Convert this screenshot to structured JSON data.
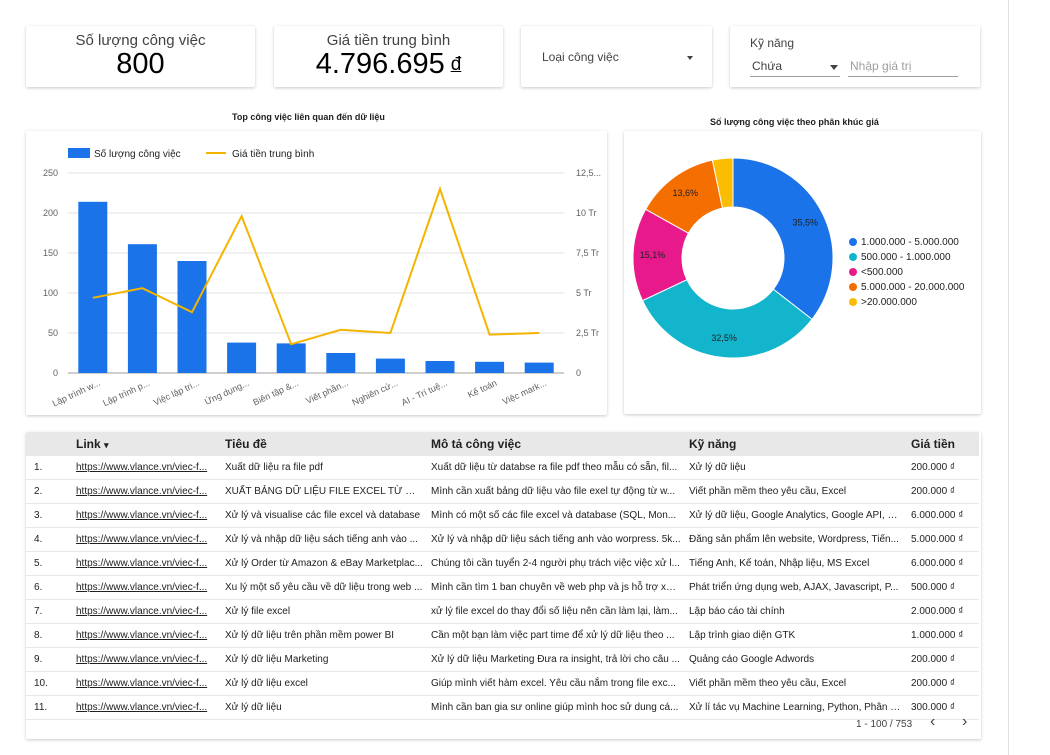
{
  "kpis": [
    {
      "label": "Số lượng công việc",
      "value": "800",
      "unit": ""
    },
    {
      "label": "Giá tiền trung bình",
      "value": "4.796.695",
      "unit": "đ"
    }
  ],
  "filters": {
    "job_type": {
      "label": "Loại công việc"
    },
    "skills": {
      "label": "Kỹ năng",
      "operator": "Chứa",
      "placeholder": "Nhập giá trị"
    }
  },
  "bar_chart_title": "Top công việc liên quan đến dữ liệu",
  "pie_chart_title": "Số lượng công việc theo phân khúc giá",
  "colors": {
    "bar": "#1a73e8",
    "line": "#f4b400",
    "pie": [
      "#1a73e8",
      "#12b5cb",
      "#e8198b",
      "#f46e00",
      "#fbbc04"
    ]
  },
  "chart_data": [
    {
      "type": "bar",
      "title": "Top công việc liên quan đến dữ liệu",
      "categories": [
        "Lập trình w...",
        "Lập trình p...",
        "Việc lập tri...",
        "Ứng dụng...",
        "Biên tập &...",
        "Viết phần...",
        "Nghiên cứ...",
        "AI - Trí tuệ...",
        "Kế toán",
        "Việc mark..."
      ],
      "series": [
        {
          "name": "Số lượng công việc",
          "axis": "left",
          "values": [
            214,
            161,
            140,
            38,
            37,
            25,
            18,
            15,
            14,
            13
          ]
        },
        {
          "name": "Giá tiền trung bình",
          "axis": "right",
          "type": "line",
          "values": [
            4700000,
            5300000,
            3800000,
            9800000,
            1800000,
            2700000,
            2500000,
            11500000,
            2400000,
            2500000
          ]
        }
      ],
      "ylim": [
        0,
        250
      ],
      "y_ticks": [
        "0",
        "50",
        "100",
        "150",
        "200",
        "250"
      ],
      "y2lim": [
        0,
        12500000
      ],
      "y2_ticks": [
        "0",
        "2,5 Tr",
        "5 Tr",
        "7,5 Tr",
        "10 Tr",
        "12,5..."
      ],
      "legend_position": "top-left",
      "grid": true
    },
    {
      "type": "pie",
      "title": "Số lượng công việc theo phân khúc giá",
      "labels": [
        "1.000.000 - 5.000.000",
        "500.000 - 1.000.000",
        "<500.000",
        "5.000.000 - 20.000.000",
        ">20.000.000"
      ],
      "values": [
        35.5,
        32.5,
        15.1,
        13.6,
        3.3
      ],
      "slice_labels": [
        "35,5%",
        "32,5%",
        "15,1%",
        "13,6%",
        ""
      ],
      "donut": true,
      "legend_position": "right"
    }
  ],
  "table": {
    "columns": [
      "Link",
      "Tiêu đề",
      "Mô tả công việc",
      "Kỹ năng",
      "Giá tiền"
    ],
    "sort_indicator": "▾",
    "rows": [
      {
        "n": "1.",
        "link": "https://www.vlance.vn/viec-f...",
        "title": "Xuất dữ liệu ra file pdf",
        "desc": "Xuất dữ liệu từ databse ra file pdf theo mẫu có sẵn, fil...",
        "skills": "Xử lý dữ liệu",
        "price": "200.000 ₫"
      },
      {
        "n": "2.",
        "link": "https://www.vlance.vn/viec-f...",
        "title": "XUẤT BẢNG DỮ LIỆU FILE EXCEL TỪ WEB",
        "desc": "Mình cần xuất bảng dữ liệu vào file exel tự động từ w...",
        "skills": "Viết phần mềm theo yêu cầu, Excel",
        "price": "200.000 ₫"
      },
      {
        "n": "3.",
        "link": "https://www.vlance.vn/viec-f...",
        "title": "Xử lý và visualise các file excel và database",
        "desc": "Mình có một số các file excel và database (SQL, Mon...",
        "skills": "Xử lý dữ liệu, Google Analytics, Google API, M...",
        "price": "6.000.000 ₫"
      },
      {
        "n": "4.",
        "link": "https://www.vlance.vn/viec-f...",
        "title": "Xử lý và nhập dữ liệu sách tiếng anh vào ...",
        "desc": "Xử lý và nhập dữ liệu sách tiếng anh vào worpress. 5k...",
        "skills": "Đăng sản phẩm lên website, Wordpress, Tiến...",
        "price": "5.000.000 ₫"
      },
      {
        "n": "5.",
        "link": "https://www.vlance.vn/viec-f...",
        "title": "Xử lý Order từ Amazon & eBay Marketplac...",
        "desc": "Chúng tôi cần tuyển 2-4 người phụ trách việc việc xử l...",
        "skills": "Tiếng Anh, Kế toán, Nhập liệu, MS Excel",
        "price": "6.000.000 ₫"
      },
      {
        "n": "6.",
        "link": "https://www.vlance.vn/viec-f...",
        "title": "Xu lý một số yêu cầu về dữ liệu trong web ...",
        "desc": "Mình cần tìm 1 ban chuyên về web php và js hỗ trợ xử...",
        "skills": "Phát triển ứng dụng web, AJAX, Javascript, P...",
        "price": "500.000 ₫"
      },
      {
        "n": "7.",
        "link": "https://www.vlance.vn/viec-f...",
        "title": "Xử lý file excel",
        "desc": "xử lý file excel do thay đổi số liệu nên cần làm lại, làm...",
        "skills": "Lập báo cáo tài chính",
        "price": "2.000.000 ₫"
      },
      {
        "n": "8.",
        "link": "https://www.vlance.vn/viec-f...",
        "title": "Xử lý dữ liệu trên phần mềm power BI",
        "desc": "Cần một bạn làm việc part time để xử lý dữ liệu theo ...",
        "skills": "Lập trình giao diện GTK",
        "price": "1.000.000 ₫"
      },
      {
        "n": "9.",
        "link": "https://www.vlance.vn/viec-f...",
        "title": "Xử lý dữ liệu Marketing",
        "desc": "Xử lý dữ liệu Marketing Đưa ra insight, trả lời cho câu ...",
        "skills": "Quảng cáo Google Adwords",
        "price": "200.000 ₫"
      },
      {
        "n": "10.",
        "link": "https://www.vlance.vn/viec-f...",
        "title": "Xử lý dữ liệu excel",
        "desc": "Giúp mình viết hàm excel. Yêu cầu nắm trong file exc...",
        "skills": "Viết phần mềm theo yêu cầu, Excel",
        "price": "200.000 ₫"
      },
      {
        "n": "11.",
        "link": "https://www.vlance.vn/viec-f...",
        "title": "Xử lý dữ liệu",
        "desc": "Mình cần ban gia sư online giúp mình hoc sử dung cá...",
        "skills": "Xử lí tác vụ Machine Learning, Python, Phân tí...",
        "price": "300.000 ₫"
      }
    ],
    "pagination": "1 - 100 / 753",
    "prev_icon": "‹",
    "next_icon": "›"
  }
}
